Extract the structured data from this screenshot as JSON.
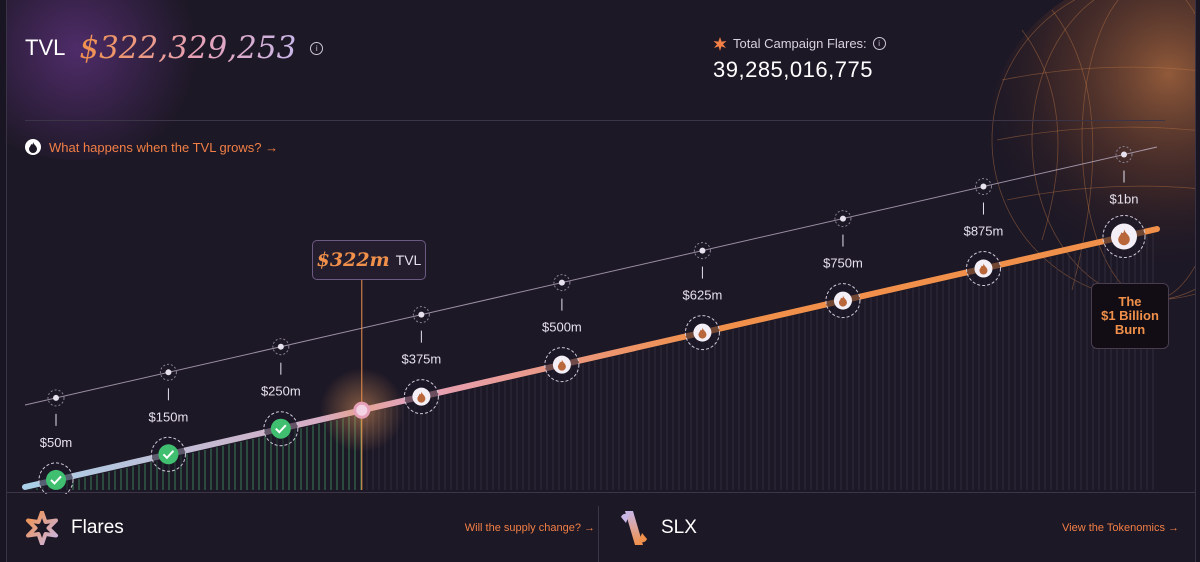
{
  "header": {
    "tvl_label": "TVL",
    "tvl_value": "$322,329,253",
    "flares_label": "Total Campaign Flares:",
    "flares_value": "39,285,016,775"
  },
  "question_link": "What happens when the TVL grows? →",
  "current": {
    "value": "$322m",
    "label": "TVL",
    "tvl_m": 322
  },
  "milestones": [
    {
      "label": "$50m",
      "tvl_m": 50,
      "achieved": true
    },
    {
      "label": "$150m",
      "tvl_m": 150,
      "achieved": true
    },
    {
      "label": "$250m",
      "tvl_m": 250,
      "achieved": true
    },
    {
      "label": "$375m",
      "tvl_m": 375,
      "achieved": false
    },
    {
      "label": "$500m",
      "tvl_m": 500,
      "achieved": false
    },
    {
      "label": "$625m",
      "tvl_m": 625,
      "achieved": false
    },
    {
      "label": "$750m",
      "tvl_m": 750,
      "achieved": false
    },
    {
      "label": "$875m",
      "tvl_m": 875,
      "achieved": false
    },
    {
      "label": "$1bn",
      "tvl_m": 1000,
      "achieved": false
    }
  ],
  "burn_label": [
    "The",
    "$1 Billion",
    "Burn"
  ],
  "footer": {
    "left_name": "Flares",
    "left_link": "Will the supply change? →",
    "right_name": "SLX",
    "right_link": "View the Tokenomics →"
  },
  "colors": {
    "accent": "#f27f45",
    "achieved": "#3fbf6f"
  }
}
